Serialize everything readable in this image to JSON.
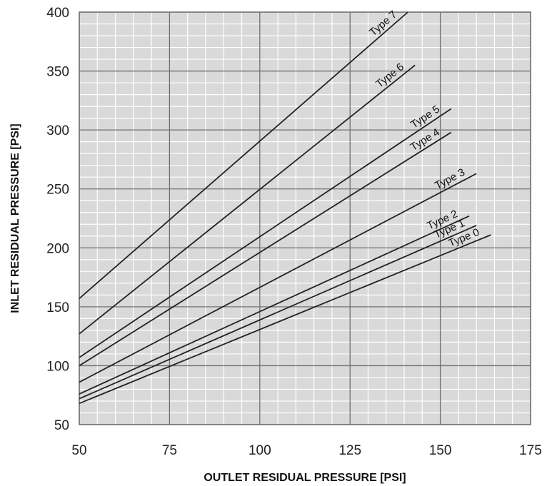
{
  "chart_data": {
    "type": "line",
    "xlabel": "OUTLET RESIDUAL PRESSURE [PSI]",
    "ylabel": "INLET RESIDUAL PRESSURE [PSI]",
    "xlim": [
      50,
      175
    ],
    "ylim": [
      50,
      400
    ],
    "x_ticks": [
      "50",
      "75",
      "100",
      "125",
      "150",
      "175"
    ],
    "y_ticks": [
      "50",
      "100",
      "150",
      "200",
      "250",
      "300",
      "350",
      "400"
    ],
    "grid": true,
    "x_minor_step": 5,
    "y_minor_step": 10,
    "colors": {
      "plot_bg": "#d9d9d9",
      "line": "#222222",
      "grid_major": "#6e6e6e",
      "grid_minor": "#ffffff"
    },
    "series": [
      {
        "name": "Type 0",
        "x": [
          50,
          164
        ],
        "y": [
          68,
          211
        ]
      },
      {
        "name": "Type 1",
        "x": [
          50,
          160
        ],
        "y": [
          72,
          219
        ]
      },
      {
        "name": "Type 2",
        "x": [
          50,
          158
        ],
        "y": [
          76,
          227
        ]
      },
      {
        "name": "Type 3",
        "x": [
          50,
          160
        ],
        "y": [
          86,
          263
        ]
      },
      {
        "name": "Type 4",
        "x": [
          50,
          153
        ],
        "y": [
          100,
          298
        ]
      },
      {
        "name": "Type 5",
        "x": [
          50,
          153
        ],
        "y": [
          107,
          318
        ]
      },
      {
        "name": "Type 6",
        "x": [
          50,
          143
        ],
        "y": [
          127,
          355
        ]
      },
      {
        "name": "Type 7",
        "x": [
          50,
          141
        ],
        "y": [
          157,
          400
        ]
      }
    ]
  }
}
